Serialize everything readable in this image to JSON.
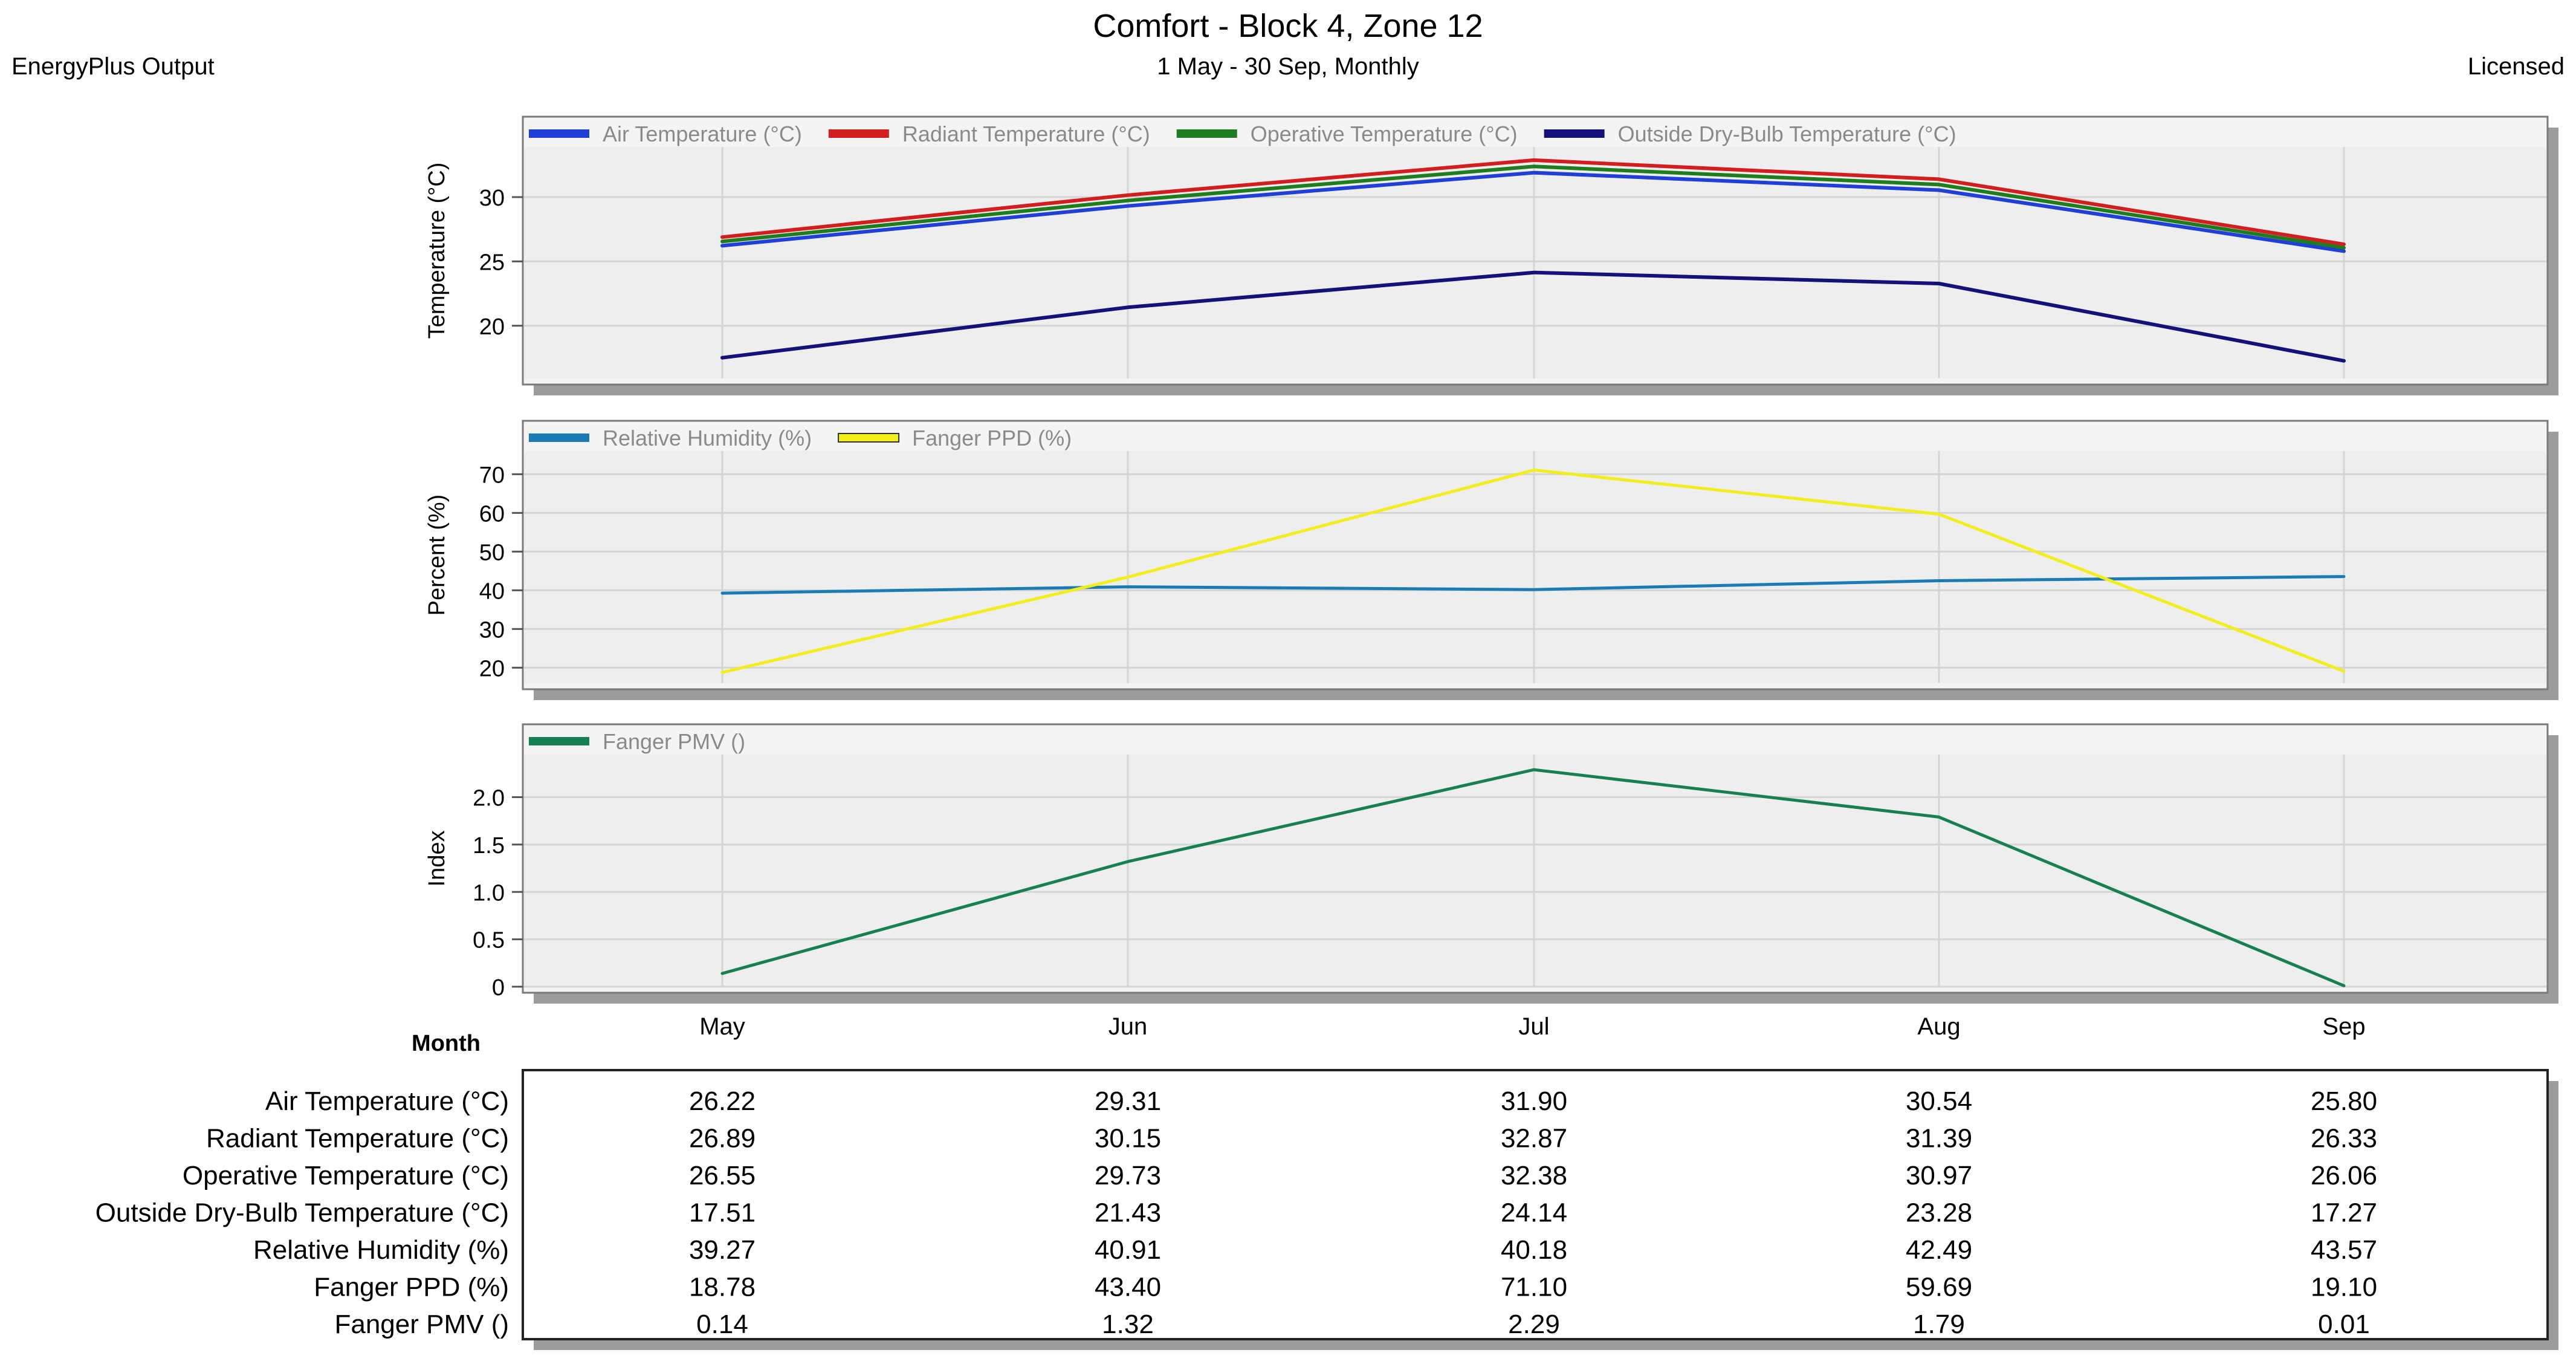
{
  "header": {
    "title": "Comfort - Block 4, Zone 12",
    "subtitle": "1 May - 30 Sep, Monthly",
    "left_label": "EnergyPlus Output",
    "right_label": "Licensed"
  },
  "colors": {
    "air": "#1f3fd6",
    "radiant": "#d21e1e",
    "operative": "#1e7d1e",
    "outside": "#12127a",
    "humidity": "#1a7bb5",
    "ppd": "#f2ee1e",
    "pmv": "#168050",
    "plot_bg": "#edeeed",
    "grid": "#d4d6d4",
    "shadow": "#9c9c9c"
  },
  "chart_data": [
    {
      "type": "line",
      "title": "",
      "xlabel": "",
      "ylabel": "Temperature (°C)",
      "categories": [
        "May",
        "Jun",
        "Jul",
        "Aug",
        "Sep"
      ],
      "ylim": [
        15.9,
        33.9
      ],
      "yticks": [
        "20",
        "25",
        "30"
      ],
      "grid": true,
      "legend": "top-left",
      "series": [
        {
          "name": "Air Temperature (°C)",
          "values": [
            26.22,
            29.31,
            31.9,
            30.54,
            25.8
          ]
        },
        {
          "name": "Radiant Temperature (°C)",
          "values": [
            26.89,
            30.15,
            32.87,
            31.39,
            26.33
          ]
        },
        {
          "name": "Operative Temperature (°C)",
          "values": [
            26.55,
            29.73,
            32.38,
            30.97,
            26.06
          ]
        },
        {
          "name": "Outside Dry-Bulb Temperature (°C)",
          "values": [
            17.51,
            21.43,
            24.14,
            23.28,
            17.27
          ]
        }
      ]
    },
    {
      "type": "line",
      "title": "",
      "xlabel": "",
      "ylabel": "Percent (%)",
      "categories": [
        "May",
        "Jun",
        "Jul",
        "Aug",
        "Sep"
      ],
      "ylim": [
        16,
        76
      ],
      "yticks": [
        "20",
        "30",
        "40",
        "50",
        "60",
        "70"
      ],
      "grid": true,
      "legend": "top-left",
      "series": [
        {
          "name": "Relative Humidity (%)",
          "values": [
            39.27,
            40.91,
            40.18,
            42.49,
            43.57
          ]
        },
        {
          "name": "Fanger PPD (%)",
          "values": [
            18.78,
            43.4,
            71.1,
            59.69,
            19.1
          ]
        }
      ]
    },
    {
      "type": "line",
      "title": "",
      "xlabel": "Month",
      "ylabel": "Index",
      "categories": [
        "May",
        "Jun",
        "Jul",
        "Aug",
        "Sep"
      ],
      "ylim": [
        0,
        2.45
      ],
      "yticks": [
        "0",
        "0.5",
        "1.0",
        "1.5",
        "2.0"
      ],
      "grid": true,
      "legend": "top-left",
      "series": [
        {
          "name": "Fanger PMV ()",
          "values": [
            0.14,
            1.32,
            2.29,
            1.79,
            0.01
          ]
        }
      ]
    }
  ],
  "table": {
    "rows": [
      {
        "label": "Air Temperature (°C)",
        "values": [
          "26.22",
          "29.31",
          "31.90",
          "30.54",
          "25.80"
        ]
      },
      {
        "label": "Radiant Temperature (°C)",
        "values": [
          "26.89",
          "30.15",
          "32.87",
          "31.39",
          "26.33"
        ]
      },
      {
        "label": "Operative Temperature (°C)",
        "values": [
          "26.55",
          "29.73",
          "32.38",
          "30.97",
          "26.06"
        ]
      },
      {
        "label": "Outside Dry-Bulb Temperature (°C)",
        "values": [
          "17.51",
          "21.43",
          "24.14",
          "23.28",
          "17.27"
        ]
      },
      {
        "label": "Relative Humidity (%)",
        "values": [
          "39.27",
          "40.91",
          "40.18",
          "42.49",
          "43.57"
        ]
      },
      {
        "label": "Fanger PPD (%)",
        "values": [
          "18.78",
          "43.40",
          "71.10",
          "59.69",
          "19.10"
        ]
      },
      {
        "label": "Fanger PMV ()",
        "values": [
          "0.14",
          "1.32",
          "2.29",
          "1.79",
          "0.01"
        ]
      }
    ]
  }
}
